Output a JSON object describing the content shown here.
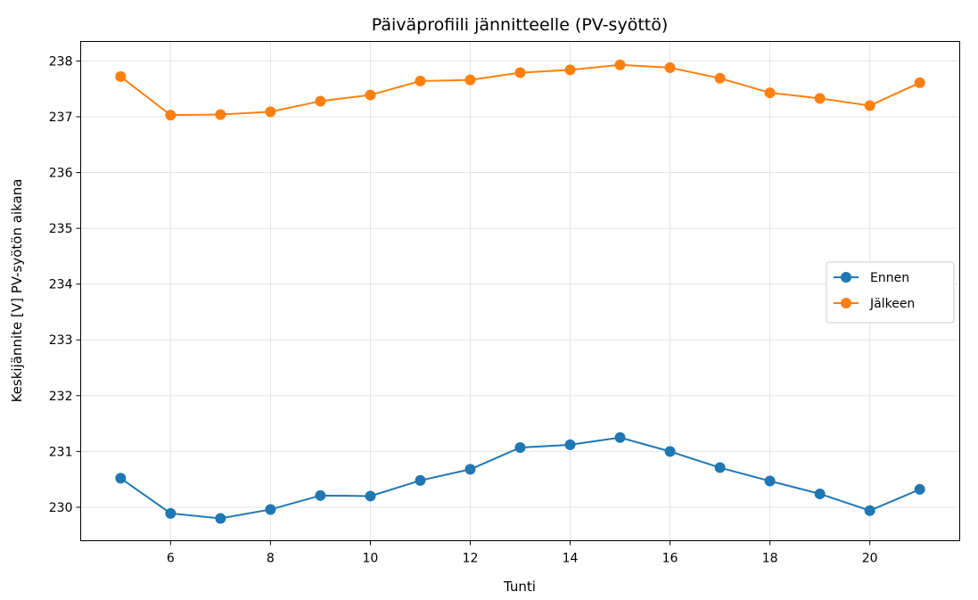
{
  "chart_data": {
    "type": "line",
    "title": "Päiväprofiili jännitteelle (PV-syöttö)",
    "xlabel": "Tunti",
    "ylabel": "Keskijännite [V] PV-syötön aikana",
    "x": [
      5,
      6,
      7,
      8,
      9,
      10,
      11,
      12,
      13,
      14,
      15,
      16,
      17,
      18,
      19,
      20,
      21
    ],
    "xlim": [
      4.2,
      21.8
    ],
    "ylim": [
      229.4,
      238.35
    ],
    "xticks": [
      6,
      8,
      10,
      12,
      14,
      16,
      18,
      20
    ],
    "yticks": [
      230,
      231,
      232,
      233,
      234,
      235,
      236,
      237,
      238
    ],
    "grid": true,
    "legend_position": "center-right",
    "series": [
      {
        "name": "Ennen",
        "color": "#1f77b4",
        "values": [
          230.52,
          229.89,
          229.8,
          229.96,
          230.21,
          230.2,
          230.48,
          230.68,
          231.07,
          231.12,
          231.25,
          231.0,
          230.71,
          230.47,
          230.24,
          229.94,
          230.32
        ]
      },
      {
        "name": "Jälkeen",
        "color": "#ff7f0e",
        "values": [
          237.72,
          237.03,
          237.04,
          237.09,
          237.28,
          237.39,
          237.64,
          237.66,
          237.79,
          237.84,
          237.93,
          237.88,
          237.69,
          237.43,
          237.33,
          237.2,
          237.61
        ]
      }
    ]
  }
}
